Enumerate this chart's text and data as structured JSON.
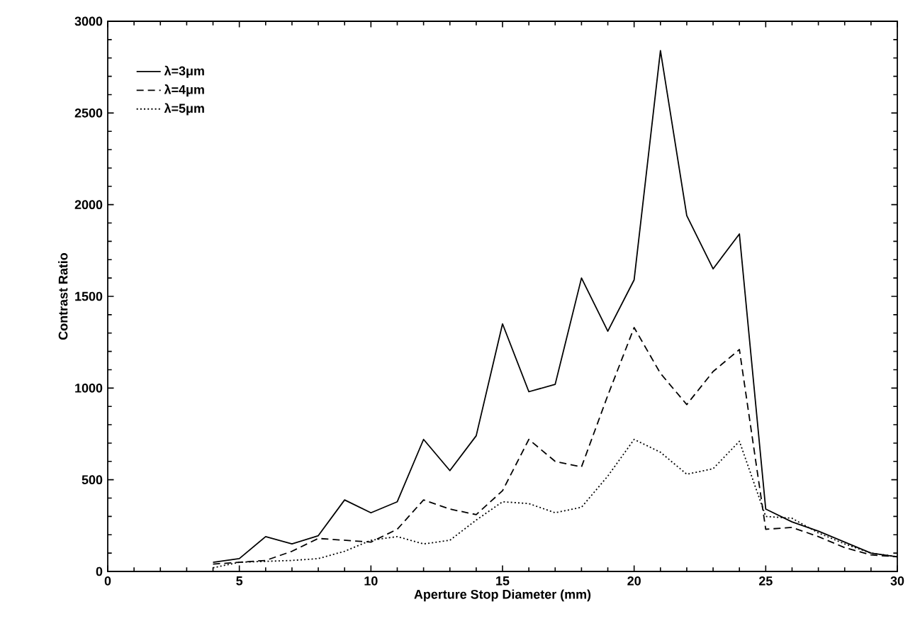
{
  "chart_data": {
    "type": "line",
    "xlabel": "Aperture Stop Diameter (mm)",
    "ylabel": "Contrast Ratio",
    "x": [
      4,
      5,
      6,
      7,
      8,
      9,
      10,
      11,
      12,
      13,
      14,
      15,
      16,
      17,
      18,
      19,
      20,
      21,
      22,
      23,
      24,
      25,
      26,
      27,
      28,
      29,
      30
    ],
    "series": [
      {
        "name": "λ=3μm",
        "color": "#000000",
        "line_style": "solid",
        "values": [
          50,
          70,
          190,
          150,
          195,
          390,
          320,
          380,
          720,
          550,
          740,
          1350,
          980,
          1020,
          1600,
          1310,
          1590,
          2840,
          1940,
          1650,
          1840,
          340,
          270,
          220,
          160,
          100,
          80
        ]
      },
      {
        "name": "λ=4μm",
        "color": "#000000",
        "line_style": "dashed",
        "values": [
          40,
          50,
          60,
          110,
          180,
          170,
          160,
          230,
          390,
          340,
          310,
          440,
          720,
          600,
          570,
          960,
          1330,
          1080,
          910,
          1090,
          1210,
          230,
          240,
          190,
          130,
          90,
          80
        ]
      },
      {
        "name": "λ=5μm",
        "color": "#000000",
        "line_style": "dotted",
        "values": [
          20,
          50,
          55,
          60,
          70,
          110,
          170,
          190,
          150,
          170,
          280,
          380,
          370,
          320,
          350,
          520,
          720,
          650,
          530,
          560,
          710,
          300,
          290,
          210,
          150,
          100,
          80
        ]
      }
    ],
    "xlim": [
      0,
      30
    ],
    "ylim": [
      0,
      3000
    ],
    "xticks": [
      0,
      5,
      10,
      15,
      20,
      25,
      30
    ],
    "yticks": [
      0,
      500,
      1000,
      1500,
      2000,
      2500,
      3000
    ],
    "grid": false,
    "legend": "top left",
    "marker": "none"
  }
}
